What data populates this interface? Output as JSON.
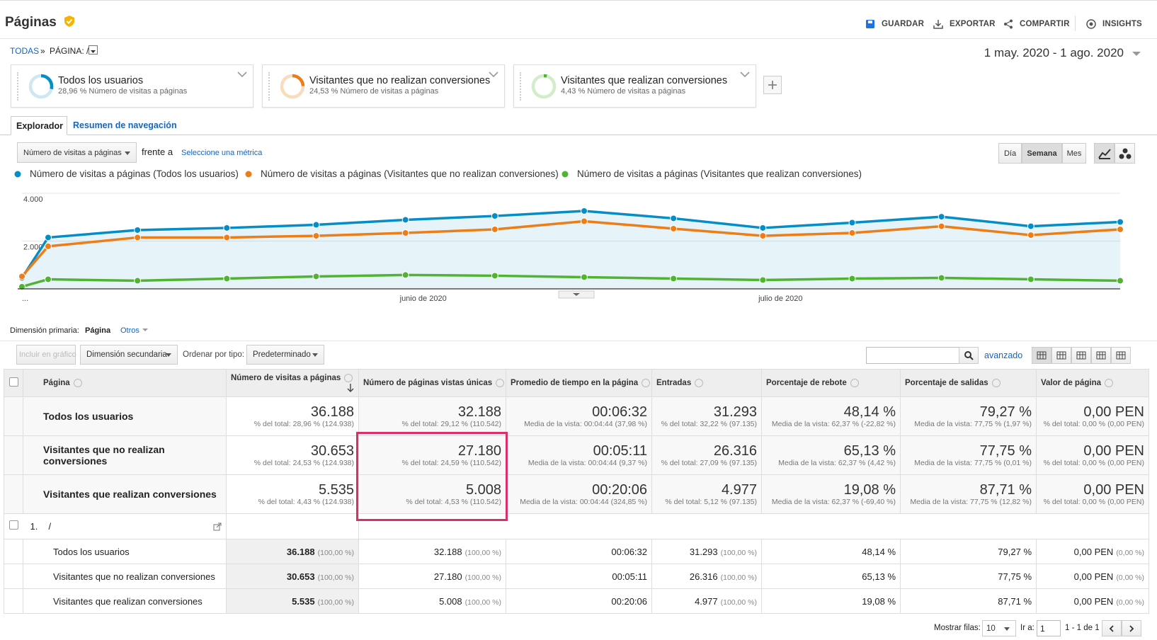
{
  "header": {
    "title": "Páginas",
    "actions": [
      "GUARDAR",
      "EXPORTAR",
      "COMPARTIR",
      "INSIGHTS"
    ]
  },
  "breadcrumb": [
    "TODAS",
    "»",
    "PÁGINA: /"
  ],
  "date_range": "1 may. 2020 - 1 ago. 2020",
  "segments": [
    {
      "name": "Todos los usuarios",
      "share": 28.96,
      "caption": "28,96 % Número de visitas a páginas",
      "color": "#058dc7",
      "track": "#cfe6f3"
    },
    {
      "name": "Visitantes que no realizan conversiones",
      "share": 24.53,
      "caption": "24,53 % Número de visitas a páginas",
      "color": "#ed7e17",
      "track": "#f8dcc0"
    },
    {
      "name": "Visitantes que realizan conversiones",
      "share": 4.43,
      "caption": "4,43 % Número de visitas a páginas",
      "color": "#50b432",
      "track": "#d3ecc9"
    }
  ],
  "tabs": [
    "Explorador",
    "Resumen de navegación"
  ],
  "chart_controls": {
    "metric": "Número de visitas a páginas",
    "versus": "frente a",
    "select_metric": "Seleccione una métrica",
    "periods": [
      "Día",
      "Semana",
      "Mes"
    ]
  },
  "chart_data": {
    "type": "line",
    "categories": [
      "...",
      null,
      null,
      null,
      null,
      "junio de 2020",
      null,
      null,
      null,
      "julio de 2020",
      null,
      null,
      null,
      null
    ],
    "series": [
      {
        "name": "Número de visitas a páginas (Todos los usuarios)",
        "color": "#058dc7",
        "values": [
          460,
          2150,
          2460,
          2550,
          2680,
          2890,
          3050,
          3260,
          2950,
          2550,
          2770,
          3020,
          2620,
          2800
        ]
      },
      {
        "name": "Número de visitas a páginas (Visitantes que no realizan conversiones)",
        "color": "#ed7e17",
        "values": [
          520,
          1780,
          2150,
          2150,
          2220,
          2340,
          2490,
          2830,
          2520,
          2220,
          2340,
          2620,
          2250,
          2490
        ]
      },
      {
        "name": "Número de visitas a páginas (Visitantes que realizan conversiones)",
        "color": "#50b432",
        "values": [
          90,
          400,
          340,
          430,
          520,
          580,
          550,
          490,
          430,
          370,
          430,
          460,
          400,
          340
        ]
      }
    ],
    "ylim": [
      0,
      4000
    ],
    "yticks": [
      {
        "value": 2000,
        "label": "2.000"
      },
      {
        "value": 4000,
        "label": "4.000"
      }
    ],
    "grid": true
  },
  "table": {
    "dimension_label": "Dimensión primaria:",
    "dimension": "Página",
    "other": "Otros",
    "toolbar": {
      "include": "Incluir en gráfico",
      "secondary": "Dimensión secundaria",
      "sort_label": "Ordenar por tipo:",
      "sort": "Predeterminado",
      "advanced": "avanzado"
    },
    "columns": [
      "Página",
      "Número de visitas a páginas",
      "Número de páginas vistas únicas",
      "Promedio de tiempo en la página",
      "Entradas",
      "Porcentaje de rebote",
      "Porcentaje de salidas",
      "Valor de página"
    ],
    "summary": [
      {
        "name": "Todos los usuarios",
        "cells": [
          [
            "36.188",
            "% del total: 28,96 % (124.938)"
          ],
          [
            "32.188",
            "% del total: 29,12 % (110.542)"
          ],
          [
            "00:06:32",
            "Media de la vista: 00:04:44 (37,98 %)"
          ],
          [
            "31.293",
            "% del total: 32,22 % (97.135)"
          ],
          [
            "48,14 %",
            "Media de la vista: 62,37 % (-22,82 %)"
          ],
          [
            "79,27 %",
            "Media de la vista: 77,75 % (1,97 %)"
          ],
          [
            "0,00 PEN",
            "% del total: 0,00 % (0,00 PEN)"
          ]
        ]
      },
      {
        "name": "Visitantes que no realizan conversiones",
        "cells": [
          [
            "30.653",
            "% del total: 24,53 % (124.938)"
          ],
          [
            "27.180",
            "% del total: 24,59 % (110.542)"
          ],
          [
            "00:05:11",
            "Media de la vista: 00:04:44 (9,37 %)"
          ],
          [
            "26.316",
            "% del total: 27,09 % (97.135)"
          ],
          [
            "65,13 %",
            "Media de la vista: 62,37 % (4,42 %)"
          ],
          [
            "77,75 %",
            "Media de la vista: 77,75 % (0,01 %)"
          ],
          [
            "0,00 PEN",
            "% del total: 0,00 % (0,00 PEN)"
          ]
        ]
      },
      {
        "name": "Visitantes que realizan conversiones",
        "cells": [
          [
            "5.535",
            "% del total: 4,43 % (124.938)"
          ],
          [
            "5.008",
            "% del total: 4,53 % (110.542)"
          ],
          [
            "00:20:06",
            "Media de la vista: 00:04:44 (324,85 %)"
          ],
          [
            "4.977",
            "% del total: 5,12 % (97.135)"
          ],
          [
            "19,08 %",
            "Media de la vista: 62,37 % (-69,40 %)"
          ],
          [
            "87,71 %",
            "Media de la vista: 77,75 % (12,82 %)"
          ],
          [
            "0,00 PEN",
            "% del total: 0,00 % (0,00 PEN)"
          ]
        ]
      }
    ],
    "rows": [
      {
        "index": "1.",
        "page": "/",
        "segments": [
          {
            "name": "Todos los usuarios",
            "cells": [
              [
                "36.188",
                "(100,00 %)"
              ],
              [
                "32.188",
                "(100,00 %)"
              ],
              [
                "00:06:32"
              ],
              [
                "31.293",
                "(100,00 %)"
              ],
              [
                "48,14 %"
              ],
              [
                "79,27 %"
              ],
              [
                "0,00 PEN",
                "(0,00 %)"
              ]
            ]
          },
          {
            "name": "Visitantes que no realizan conversiones",
            "cells": [
              [
                "30.653",
                "(100,00 %)"
              ],
              [
                "27.180",
                "(100,00 %)"
              ],
              [
                "00:05:11"
              ],
              [
                "26.316",
                "(100,00 %)"
              ],
              [
                "65,13 %"
              ],
              [
                "77,75 %"
              ],
              [
                "0,00 PEN",
                "(0,00 %)"
              ]
            ]
          },
          {
            "name": "Visitantes que realizan conversiones",
            "cells": [
              [
                "5.535",
                "(100,00 %)"
              ],
              [
                "5.008",
                "(100,00 %)"
              ],
              [
                "00:20:06"
              ],
              [
                "4.977",
                "(100,00 %)"
              ],
              [
                "19,08 %"
              ],
              [
                "87,71 %"
              ],
              [
                "0,00 PEN",
                "(0,00 %)"
              ]
            ]
          }
        ]
      }
    ],
    "pagination": {
      "show_rows": "Mostrar filas:",
      "rows": "10",
      "goto": "Ir a:",
      "page": "1",
      "range": "1 - 1 de 1"
    }
  }
}
